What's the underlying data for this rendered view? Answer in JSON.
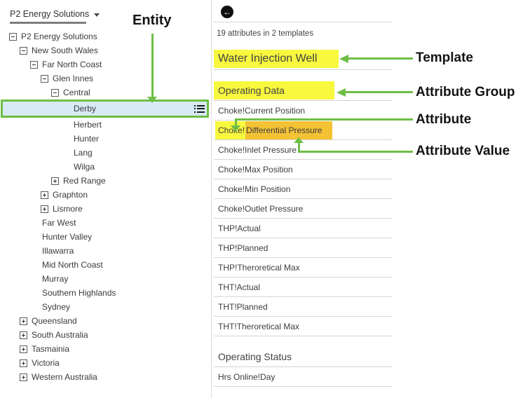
{
  "colors": {
    "annotation_green": "#6ebe46",
    "highlight_yellow": "#f8f83e",
    "highlight_orange": "#f4c235",
    "selected_row_blue": "#d8eaf6"
  },
  "left_panel": {
    "scope_selector": {
      "label": "P2 Energy Solutions",
      "icon": "chevron-down-icon"
    },
    "tree": [
      {
        "label": "P2 Energy Solutions",
        "level": 0,
        "expander": "collapse"
      },
      {
        "label": "New South Wales",
        "level": 1,
        "expander": "collapse"
      },
      {
        "label": "Far North Coast",
        "level": 2,
        "expander": "collapse"
      },
      {
        "label": "Glen Innes",
        "level": 3,
        "expander": "collapse"
      },
      {
        "label": "Central",
        "level": 4,
        "expander": "collapse"
      },
      {
        "label": "Derby",
        "level": 5,
        "expander": null,
        "selected": true,
        "icon": "list-icon"
      },
      {
        "label": "Herbert",
        "level": 5,
        "expander": null
      },
      {
        "label": "Hunter",
        "level": 5,
        "expander": null
      },
      {
        "label": "Lang",
        "level": 5,
        "expander": null
      },
      {
        "label": "Wilga",
        "level": 5,
        "expander": null
      },
      {
        "label": "Red Range",
        "level": 4,
        "expander": "expand"
      },
      {
        "label": "Graphton",
        "level": 3,
        "expander": "expand"
      },
      {
        "label": "Lismore",
        "level": 3,
        "expander": "expand"
      },
      {
        "label": "Far West",
        "level": 2,
        "expander": null
      },
      {
        "label": "Hunter Valley",
        "level": 2,
        "expander": null
      },
      {
        "label": "Illawarra",
        "level": 2,
        "expander": null
      },
      {
        "label": "Mid North Coast",
        "level": 2,
        "expander": null
      },
      {
        "label": "Murray",
        "level": 2,
        "expander": null
      },
      {
        "label": "Southern Highlands",
        "level": 2,
        "expander": null
      },
      {
        "label": "Sydney",
        "level": 2,
        "expander": null
      },
      {
        "label": "Queensland",
        "level": 1,
        "expander": "expand"
      },
      {
        "label": "South Australia",
        "level": 1,
        "expander": "expand"
      },
      {
        "label": "Tasmainia",
        "level": 1,
        "expander": "expand"
      },
      {
        "label": "Victoria",
        "level": 1,
        "expander": "expand"
      },
      {
        "label": "Western Australia",
        "level": 1,
        "expander": "expand"
      }
    ]
  },
  "right_panel": {
    "back_icon": "back-arrow-icon",
    "summary": "19 attributes in 2 templates",
    "template_header": {
      "label": "Water Injection Well",
      "highlighted": true
    },
    "sections": [
      {
        "label": "Operating Data",
        "highlighted": true,
        "attributes": [
          {
            "text": "Choke!Current Position"
          },
          {
            "parts": [
              {
                "text": "Choke!",
                "hl": "yellow"
              },
              {
                "text": "Differential Pressure",
                "hl": "orange"
              }
            ]
          },
          {
            "text": "Choke!Inlet Pressure"
          },
          {
            "text": "Choke!Max Position"
          },
          {
            "text": "Choke!Min Position"
          },
          {
            "text": "Choke!Outlet Pressure"
          },
          {
            "text": "THP!Actual"
          },
          {
            "text": "THP!Planned"
          },
          {
            "text": "THP!Theroretical Max"
          },
          {
            "text": "THT!Actual"
          },
          {
            "text": "THT!Planned"
          },
          {
            "text": "THT!Theroretical Max"
          }
        ]
      },
      {
        "label": "Operating Status",
        "highlighted": false,
        "attributes": [
          {
            "text": "Hrs Online!Day"
          }
        ]
      }
    ]
  },
  "annotations": {
    "entity": {
      "label": "Entity"
    },
    "template": {
      "label": "Template"
    },
    "attribute_group": {
      "label": "Attribute Group"
    },
    "attribute": {
      "label": "Attribute"
    },
    "attribute_value": {
      "label": "Attribute Value"
    }
  }
}
